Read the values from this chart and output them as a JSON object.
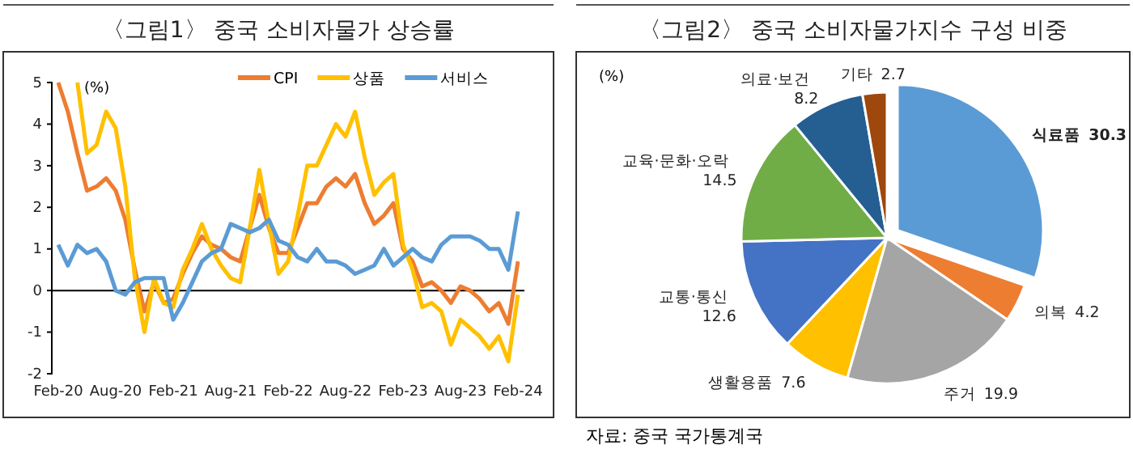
{
  "chart_data": [
    {
      "type": "line",
      "title": "〈그림1〉 중국 소비자물가 상승률",
      "ylabel": "(%)",
      "categories": [
        "Feb-20",
        null,
        null,
        null,
        null,
        null,
        "Aug-20",
        null,
        null,
        null,
        null,
        null,
        "Feb-21",
        null,
        null,
        null,
        null,
        null,
        "Aug-21",
        null,
        null,
        null,
        null,
        null,
        "Feb-22",
        null,
        null,
        null,
        null,
        null,
        "Aug-22",
        null,
        null,
        null,
        null,
        null,
        "Feb-23",
        null,
        null,
        null,
        null,
        null,
        "Aug-23",
        null,
        null,
        null,
        null,
        null,
        "Feb-24"
      ],
      "series": [
        {
          "name": "CPI",
          "color": "#ed7d31",
          "values": [
            5.0,
            4.3,
            3.3,
            2.4,
            2.5,
            2.7,
            2.4,
            1.7,
            0.5,
            -0.5,
            0.2,
            -0.3,
            -0.2,
            0.4,
            0.9,
            1.3,
            1.1,
            1.0,
            0.8,
            0.7,
            1.5,
            2.3,
            1.5,
            0.9,
            0.9,
            1.5,
            2.1,
            2.1,
            2.5,
            2.7,
            2.5,
            2.8,
            2.1,
            1.6,
            1.8,
            2.1,
            1.0,
            0.7,
            0.1,
            0.2,
            0.0,
            -0.3,
            0.1,
            0.0,
            -0.2,
            -0.5,
            -0.3,
            -0.8,
            0.7
          ]
        },
        {
          "name": "상품",
          "color": "#ffc000",
          "values": [
            null,
            null,
            5.0,
            3.3,
            3.5,
            4.3,
            3.9,
            2.5,
            0.3,
            -1.0,
            0.3,
            -0.3,
            -0.4,
            0.5,
            1.0,
            1.6,
            1.0,
            0.6,
            0.3,
            0.2,
            1.5,
            2.9,
            1.6,
            0.4,
            0.7,
            1.8,
            3.0,
            3.0,
            3.5,
            4.0,
            3.7,
            4.3,
            3.2,
            2.3,
            2.6,
            2.8,
            1.1,
            0.5,
            -0.4,
            -0.3,
            -0.5,
            -1.3,
            -0.7,
            -0.9,
            -1.1,
            -1.4,
            -1.1,
            -1.7,
            -0.1
          ]
        },
        {
          "name": "서비스",
          "color": "#5b9bd5",
          "values": [
            1.1,
            0.6,
            1.1,
            0.9,
            1.0,
            0.7,
            0.0,
            -0.1,
            0.2,
            0.3,
            0.3,
            0.3,
            -0.7,
            -0.3,
            0.2,
            0.7,
            0.9,
            1.0,
            1.6,
            1.5,
            1.4,
            1.5,
            1.7,
            1.2,
            1.1,
            0.8,
            0.7,
            1.0,
            0.7,
            0.7,
            0.6,
            0.4,
            0.5,
            0.6,
            1.0,
            0.6,
            0.8,
            1.0,
            0.8,
            0.7,
            1.1,
            1.3,
            1.3,
            1.3,
            1.2,
            1.0,
            1.0,
            0.5,
            1.9
          ]
        }
      ],
      "ylim": [
        -2,
        5
      ],
      "yticks": [
        -2,
        -1,
        0,
        1,
        2,
        3,
        4,
        5
      ],
      "legend": "top",
      "marker": "none",
      "line_style": "solid"
    },
    {
      "type": "pie",
      "title": "〈그림2〉 중국 소비자물가지수 구성 비중",
      "categories": [
        "식료품",
        "의복",
        "주거",
        "생활용품",
        "교통·통신",
        "교육·문화·오락",
        "의료·보건",
        "기타"
      ],
      "values": [
        30.3,
        4.2,
        19.9,
        7.6,
        12.6,
        14.5,
        8.2,
        2.7
      ],
      "colors": [
        "#5b9bd5",
        "#ed7d31",
        "#a5a5a5",
        "#ffc000",
        "#4472c4",
        "#70ad47",
        "#255e91",
        "#9e480e"
      ],
      "data_labels": true,
      "annotations": [
        "(%)",
        "자료: 중국 국가통계국"
      ]
    }
  ]
}
